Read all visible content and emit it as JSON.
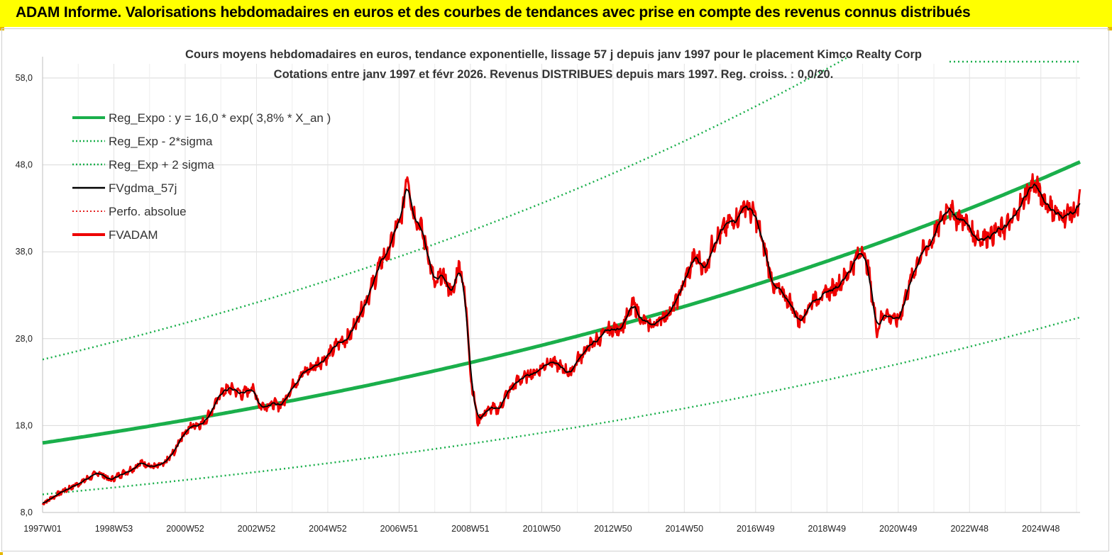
{
  "header": {
    "title": "ADAM Informe. Valorisations hebdomadaires en euros et des courbes de tendances avec prise en compte des revenus connus distribués"
  },
  "chart_data": {
    "type": "line",
    "title_line1": "Cours moyens hebdomadaires en euros, tendance exponentielle, lissage 57 j depuis janv 1997 pour le placement Kimco Realty Corp",
    "title_line2": "Cotations entre janv 1997 et févr 2026. Revenus DISTRIBUES depuis mars 1997. Reg. croiss. : 0,0/20.",
    "ylim": [
      8,
      58
    ],
    "xlim": [
      1997.0,
      2026.1
    ],
    "y_ticks": [
      "8,0",
      "18,0",
      "28,0",
      "38,0",
      "48,0",
      "58,0"
    ],
    "x_ticks": [
      {
        "label": "1997W01",
        "x": 1997.0
      },
      {
        "label": "1998W53",
        "x": 1999.0
      },
      {
        "label": "2000W52",
        "x": 2001.0
      },
      {
        "label": "2002W52",
        "x": 2003.0
      },
      {
        "label": "2004W52",
        "x": 2005.0
      },
      {
        "label": "2006W51",
        "x": 2007.0
      },
      {
        "label": "2008W51",
        "x": 2009.0
      },
      {
        "label": "2010W50",
        "x": 2011.0
      },
      {
        "label": "2012W50",
        "x": 2013.0
      },
      {
        "label": "2014W50",
        "x": 2015.0
      },
      {
        "label": "2016W49",
        "x": 2017.0
      },
      {
        "label": "2018W49",
        "x": 2019.0
      },
      {
        "label": "2020W49",
        "x": 2021.0
      },
      {
        "label": "2022W48",
        "x": 2023.0
      },
      {
        "label": "2024W48",
        "x": 2025.0
      }
    ],
    "grid": true,
    "legend_position": "top-left",
    "regression": {
      "a": 16.0,
      "rate": 0.038,
      "sigma_factor_low": 0.63,
      "sigma_factor_high": 1.6
    },
    "series": [
      {
        "name": "Reg_Expo : y = 16,0 * exp( 3,8% *  X_an )",
        "color": "#1aaf4b",
        "style": "solid-thick",
        "kind": "reg"
      },
      {
        "name": "Reg_Exp - 2*sigma",
        "color": "#1aaf4b",
        "style": "dotted",
        "kind": "low"
      },
      {
        "name": "Reg_Exp + 2 sigma",
        "color": "#1aaf4b",
        "style": "dotted",
        "kind": "high"
      },
      {
        "name": "FVgdma_57j",
        "color": "#000000",
        "style": "solid",
        "kind": "smooth"
      },
      {
        "name": "Perfo. absolue",
        "color": "#e00000",
        "style": "dotted",
        "kind": "perfo"
      },
      {
        "name": "FVADAM",
        "color": "#ee0000",
        "style": "solid-thick",
        "kind": "price"
      }
    ],
    "price_points": [
      [
        1997.0,
        9.0
      ],
      [
        1997.3,
        9.8
      ],
      [
        1997.6,
        10.5
      ],
      [
        1998.0,
        11.3
      ],
      [
        1998.3,
        12.0
      ],
      [
        1998.6,
        12.6
      ],
      [
        1998.9,
        11.7
      ],
      [
        1999.2,
        12.4
      ],
      [
        1999.5,
        13.0
      ],
      [
        1999.8,
        13.8
      ],
      [
        2000.1,
        13.2
      ],
      [
        2000.4,
        13.5
      ],
      [
        2000.7,
        15.0
      ],
      [
        2000.9,
        16.8
      ],
      [
        2001.2,
        18.0
      ],
      [
        2001.5,
        18.3
      ],
      [
        2001.8,
        20.0
      ],
      [
        2002.0,
        21.8
      ],
      [
        2002.3,
        22.3
      ],
      [
        2002.6,
        21.6
      ],
      [
        2002.9,
        22.4
      ],
      [
        2003.1,
        20.2
      ],
      [
        2003.4,
        20.5
      ],
      [
        2003.7,
        20.3
      ],
      [
        2004.0,
        22.5
      ],
      [
        2004.3,
        24.0
      ],
      [
        2004.6,
        24.8
      ],
      [
        2005.0,
        26.0
      ],
      [
        2005.3,
        27.5
      ],
      [
        2005.6,
        28.2
      ],
      [
        2005.9,
        31.0
      ],
      [
        2006.2,
        33.5
      ],
      [
        2006.5,
        37.0
      ],
      [
        2006.7,
        38.0
      ],
      [
        2006.9,
        40.5
      ],
      [
        2007.1,
        42.0
      ],
      [
        2007.2,
        47.5
      ],
      [
        2007.4,
        42.5
      ],
      [
        2007.6,
        41.0
      ],
      [
        2007.8,
        38.0
      ],
      [
        2008.0,
        34.0
      ],
      [
        2008.2,
        35.5
      ],
      [
        2008.5,
        33.0
      ],
      [
        2008.7,
        37.0
      ],
      [
        2008.9,
        31.0
      ],
      [
        2009.0,
        24.0
      ],
      [
        2009.2,
        18.5
      ],
      [
        2009.4,
        19.5
      ],
      [
        2009.6,
        20.0
      ],
      [
        2009.8,
        19.8
      ],
      [
        2010.0,
        21.5
      ],
      [
        2010.3,
        23.0
      ],
      [
        2010.6,
        23.8
      ],
      [
        2010.9,
        24.3
      ],
      [
        2011.2,
        25.5
      ],
      [
        2011.5,
        24.8
      ],
      [
        2011.8,
        24.0
      ],
      [
        2012.0,
        25.5
      ],
      [
        2012.3,
        27.0
      ],
      [
        2012.6,
        28.0
      ],
      [
        2012.9,
        29.0
      ],
      [
        2013.2,
        29.2
      ],
      [
        2013.4,
        30.5
      ],
      [
        2013.6,
        32.0
      ],
      [
        2013.8,
        30.0
      ],
      [
        2014.1,
        29.5
      ],
      [
        2014.4,
        30.5
      ],
      [
        2014.7,
        31.5
      ],
      [
        2015.0,
        34.5
      ],
      [
        2015.3,
        37.5
      ],
      [
        2015.6,
        36.0
      ],
      [
        2015.8,
        39.0
      ],
      [
        2016.0,
        40.0
      ],
      [
        2016.3,
        41.5
      ],
      [
        2016.5,
        42.0
      ],
      [
        2016.7,
        43.5
      ],
      [
        2017.0,
        42.0
      ],
      [
        2017.3,
        37.5
      ],
      [
        2017.5,
        34.0
      ],
      [
        2017.8,
        33.0
      ],
      [
        2018.0,
        32.0
      ],
      [
        2018.2,
        30.0
      ],
      [
        2018.4,
        31.0
      ],
      [
        2018.6,
        32.5
      ],
      [
        2018.9,
        33.0
      ],
      [
        2019.2,
        33.8
      ],
      [
        2019.5,
        35.0
      ],
      [
        2019.8,
        37.0
      ],
      [
        2020.0,
        38.5
      ],
      [
        2020.2,
        35.0
      ],
      [
        2020.4,
        29.0
      ],
      [
        2020.6,
        31.0
      ],
      [
        2020.8,
        30.5
      ],
      [
        2021.0,
        30.0
      ],
      [
        2021.3,
        34.0
      ],
      [
        2021.6,
        37.5
      ],
      [
        2021.9,
        39.0
      ],
      [
        2022.2,
        41.5
      ],
      [
        2022.4,
        43.5
      ],
      [
        2022.6,
        42.0
      ],
      [
        2022.9,
        41.5
      ],
      [
        2023.1,
        40.0
      ],
      [
        2023.3,
        39.5
      ],
      [
        2023.6,
        40.0
      ],
      [
        2023.9,
        40.5
      ],
      [
        2024.2,
        41.5
      ],
      [
        2024.5,
        44.0
      ],
      [
        2024.8,
        46.0
      ],
      [
        2025.0,
        44.5
      ],
      [
        2025.2,
        43.5
      ],
      [
        2025.4,
        42.5
      ],
      [
        2025.6,
        42.0
      ],
      [
        2025.8,
        42.5
      ],
      [
        2026.0,
        42.5
      ],
      [
        2026.1,
        44.0
      ]
    ]
  }
}
